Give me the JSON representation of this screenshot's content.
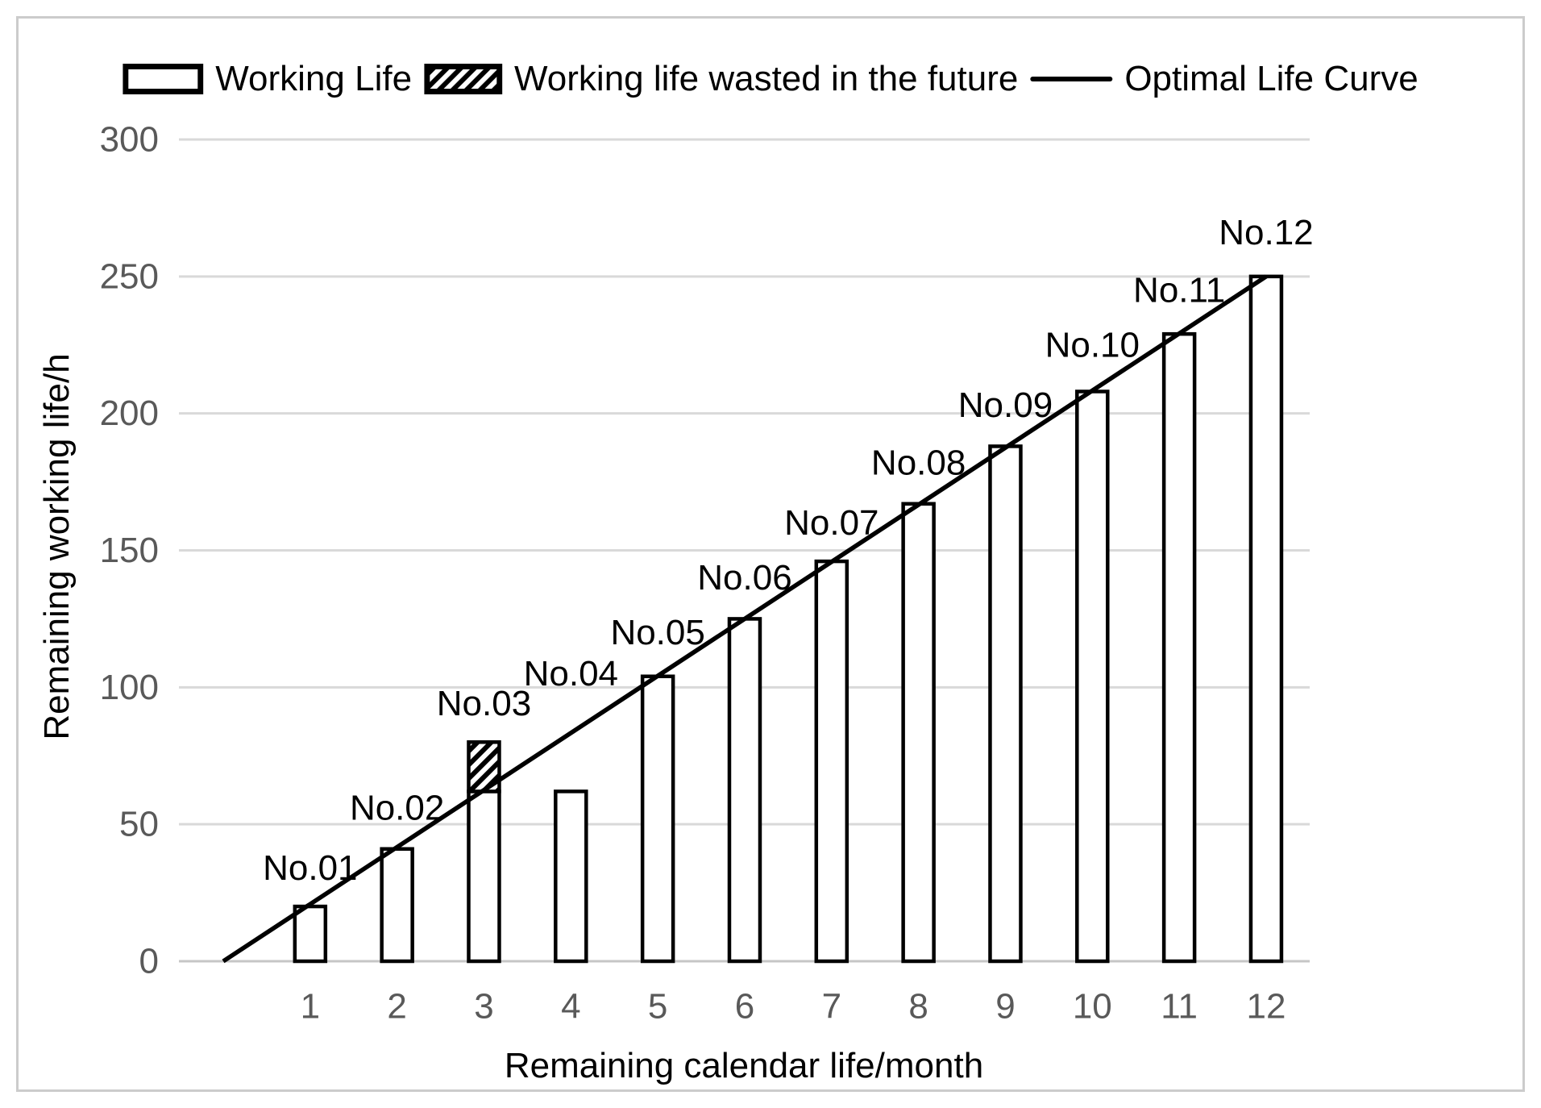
{
  "legend": {
    "items": [
      {
        "label": "Working Life",
        "swatch": "bar-outline"
      },
      {
        "label": "Working life wasted in the future",
        "swatch": "bar-hatched"
      },
      {
        "label": "Optimal Life Curve",
        "swatch": "line"
      }
    ]
  },
  "chart_data": {
    "type": "bar",
    "categories": [
      "1",
      "2",
      "3",
      "4",
      "5",
      "6",
      "7",
      "8",
      "9",
      "10",
      "11",
      "12"
    ],
    "series": [
      {
        "name": "Working Life",
        "type": "bar",
        "values": [
          20,
          41,
          62,
          62,
          104,
          125,
          146,
          167,
          188,
          208,
          229,
          250
        ]
      },
      {
        "name": "Working life wasted in the future",
        "type": "bar-stacked-hatched",
        "values": [
          0,
          0,
          18,
          0,
          0,
          0,
          0,
          0,
          0,
          0,
          0,
          0
        ]
      },
      {
        "name": "Optimal Life Curve",
        "type": "line",
        "x": [
          0,
          12
        ],
        "y": [
          0,
          250
        ]
      }
    ],
    "point_labels": {
      "texts": [
        "No.01",
        "No.02",
        "No.03",
        "No.04",
        "No.05",
        "No.06",
        "No.07",
        "No.08",
        "No.09",
        "No.10",
        "No.11",
        "No.12"
      ],
      "y_positions": [
        34,
        56,
        94,
        105,
        120,
        140,
        160,
        182,
        203,
        225,
        245,
        266
      ]
    },
    "title": "",
    "xlabel": "Remaining calendar life/month",
    "ylabel": "Remaining working life/h",
    "ylim": [
      0,
      300
    ],
    "yticks": [
      0,
      50,
      100,
      150,
      200,
      250,
      300
    ],
    "xlim": [
      -0.5,
      12.5
    ],
    "grid": true,
    "legend_position": "top-center",
    "colors": {
      "bar_fill": "#ffffff",
      "bar_stroke": "#000000",
      "hatch": "#000000",
      "line": "#000000",
      "label_text": "#000000",
      "tick_text": "#595959",
      "gridline": "#d9d9d9",
      "axis_line": "#c6c6c6",
      "frame_border": "#cccccc"
    }
  }
}
